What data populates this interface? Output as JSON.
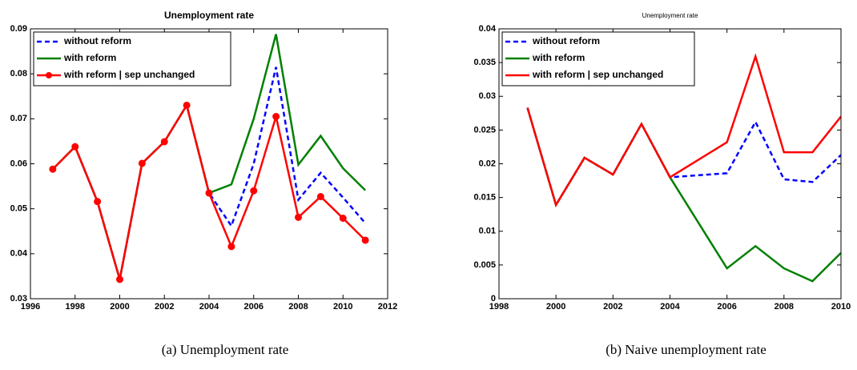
{
  "chart_data": [
    {
      "type": "line",
      "title": "Unemployment rate",
      "caption": "(a)  Unemployment rate",
      "x": [
        1997,
        1998,
        1999,
        2000,
        2001,
        2002,
        2003,
        2004,
        2005,
        2006,
        2007,
        2008,
        2009,
        2010,
        2011
      ],
      "xlim": [
        1996,
        2012
      ],
      "xticks": [
        1996,
        1998,
        2000,
        2002,
        2004,
        2006,
        2008,
        2010,
        2012
      ],
      "ylim": [
        0.03,
        0.09
      ],
      "yticks": [
        0.03,
        0.04,
        0.05,
        0.06,
        0.07,
        0.08,
        0.09
      ],
      "legend": "upper left",
      "series": [
        {
          "name": "without reform",
          "color": "#0000ff",
          "linestyle": "dashed",
          "values": [
            0.0588,
            0.0638,
            0.0516,
            0.0343,
            0.0601,
            0.0649,
            0.073,
            0.0535,
            0.0462,
            0.06,
            0.0815,
            0.052,
            0.058,
            0.0525,
            0.0468
          ]
        },
        {
          "name": "with reform",
          "color": "#008000",
          "linestyle": "solid",
          "values": [
            0.0588,
            0.0638,
            0.0516,
            0.0343,
            0.0601,
            0.0649,
            0.073,
            0.0535,
            0.0554,
            0.07,
            0.0888,
            0.0598,
            0.0662,
            0.059,
            0.0541
          ]
        },
        {
          "name": "with reform | sep unchanged",
          "color": "#ff0000",
          "linestyle": "solid",
          "marker": "o",
          "values": [
            0.0588,
            0.0638,
            0.0516,
            0.0343,
            0.0601,
            0.0649,
            0.073,
            0.0535,
            0.0416,
            0.054,
            0.0705,
            0.0481,
            0.0527,
            0.0479,
            0.043
          ]
        }
      ]
    },
    {
      "type": "line",
      "title": "Unemployment rate",
      "caption": "(b)  Naive unemployment rate",
      "x": [
        1999,
        2000,
        2001,
        2002,
        2003,
        2004,
        2006,
        2007,
        2008,
        2009,
        2010
      ],
      "xlim": [
        1998,
        2010
      ],
      "xticks": [
        1998,
        2000,
        2002,
        2004,
        2006,
        2008,
        2010
      ],
      "ylim": [
        0,
        0.04
      ],
      "yticks": [
        0,
        0.005,
        0.01,
        0.015,
        0.02,
        0.025,
        0.03,
        0.035,
        0.04
      ],
      "legend": "upper left",
      "series": [
        {
          "name": "without reform",
          "color": "#0000ff",
          "linestyle": "dashed",
          "values": [
            0.0283,
            0.0139,
            0.0209,
            0.0184,
            0.0259,
            0.018,
            0.0186,
            0.0262,
            0.0177,
            0.0173,
            0.0213
          ]
        },
        {
          "name": "with reform",
          "color": "#008000",
          "linestyle": "solid",
          "values": [
            0.0283,
            0.0139,
            0.0209,
            0.0184,
            0.0259,
            0.018,
            0.0045,
            0.0078,
            0.0045,
            0.0026,
            0.0068
          ]
        },
        {
          "name": "with reform | sep unchanged",
          "color": "#ff0000",
          "linestyle": "solid",
          "values": [
            0.0283,
            0.0139,
            0.0209,
            0.0184,
            0.0259,
            0.018,
            0.0232,
            0.0359,
            0.0217,
            0.0217,
            0.027
          ]
        }
      ]
    }
  ]
}
